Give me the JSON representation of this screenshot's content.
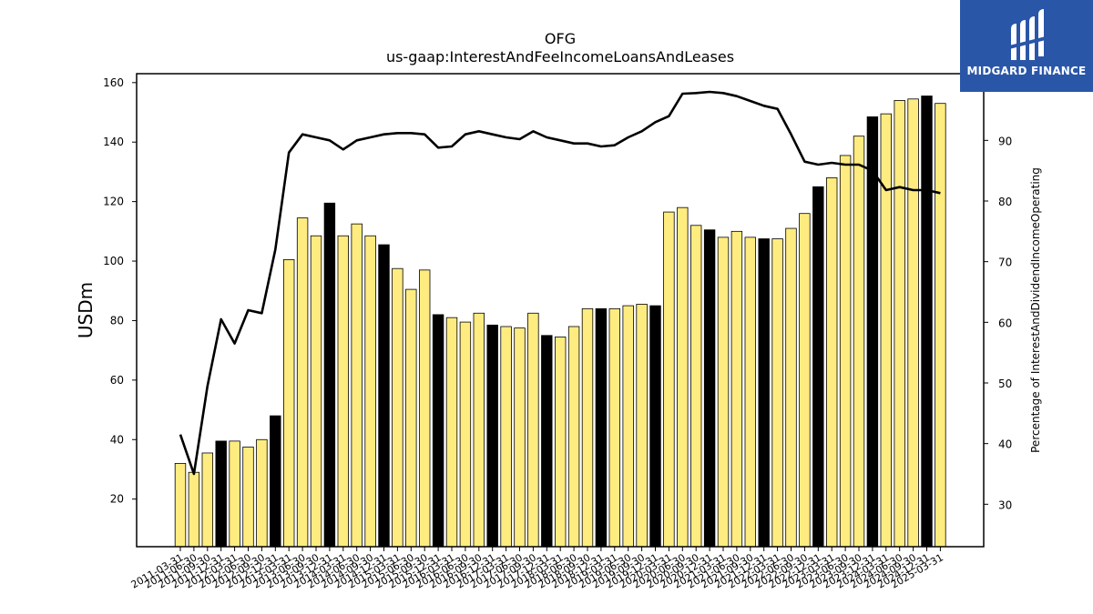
{
  "brand": {
    "name": "MIDGARD FINANCE",
    "color": "#2a56a8"
  },
  "chart_data": {
    "type": "bar",
    "title": "OFG",
    "subtitle": "us-gaap:InterestAndFeeIncomeLoansAndLeases",
    "ylabel": "USDm",
    "y2label": "Percentage of InterestAndDividendIncomeOperating",
    "ylim": [
      4,
      163
    ],
    "y2lim": [
      23,
      101
    ],
    "yticks": [
      20,
      40,
      60,
      80,
      100,
      120,
      140,
      160
    ],
    "y2ticks": [
      30,
      40,
      50,
      60,
      70,
      80,
      90
    ],
    "grid": false,
    "colors": {
      "bar": "#ffec80",
      "bar_highlight": "#000000",
      "line": "#000000"
    },
    "categories": [
      "2011-03-31",
      "2011-06-30",
      "2011-09-30",
      "2011-12-31",
      "2012-03-31",
      "2012-06-30",
      "2012-09-30",
      "2012-12-31",
      "2013-03-31",
      "2013-06-30",
      "2013-09-30",
      "2013-12-31",
      "2014-03-31",
      "2014-06-30",
      "2014-09-30",
      "2014-12-31",
      "2015-03-31",
      "2015-06-30",
      "2015-09-30",
      "2015-12-31",
      "2016-03-31",
      "2016-06-30",
      "2016-09-30",
      "2016-12-31",
      "2017-03-31",
      "2017-06-30",
      "2017-09-30",
      "2017-12-31",
      "2018-03-31",
      "2018-06-30",
      "2018-09-30",
      "2018-12-31",
      "2019-03-31",
      "2019-06-30",
      "2019-09-30",
      "2019-12-31",
      "2020-03-31",
      "2020-06-30",
      "2020-09-30",
      "2020-12-31",
      "2021-03-31",
      "2021-06-30",
      "2021-09-30",
      "2021-12-31",
      "2022-03-31",
      "2022-06-30",
      "2022-09-30",
      "2022-12-31",
      "2023-03-31",
      "2023-06-30",
      "2023-09-30",
      "2023-12-31",
      "2024-03-31",
      "2024-06-30",
      "2024-09-30",
      "2024-12-31",
      "2025-03-31"
    ],
    "tick_labels": [
      "2011-03-31",
      "2011-06-30",
      "2011-09-30",
      "2011-12-31",
      "2012-03-31",
      "2012-06-30",
      "2012-09-30",
      "2012-12-31",
      "2013-03-31",
      "2013-06-30",
      "2013-09-30",
      "2013-12-31",
      "2014-03-31",
      "2014-06-30",
      "2014-09-30",
      "2014-12-31",
      "2015-03-31",
      "2015-06-30",
      "2015-09-30",
      "2015-12-31",
      "2016-03-31",
      "2016-06-30",
      "2016-09-30",
      "2016-12-31",
      "2017-03-31",
      "2017-06-30",
      "2017-09-30",
      "2017-12-31",
      "2018-03-31",
      "2018-06-30",
      "2018-09-30",
      "2018-12-31",
      "2019-03-31",
      "2019-06-30",
      "2019-09-30",
      "2019-12-31",
      "2020-03-31",
      "2020-06-30",
      "2020-09-30",
      "2020-12-31",
      "2021-03-31",
      "2021-06-30",
      "2021-09-30",
      "2021-12-31",
      "2022-03-31",
      "2022-06-30",
      "2022-09-30",
      "2022-12-31",
      "2023-03-31",
      "2023-06-30",
      "2023-09-30",
      "2023-12-31",
      "2024-03-31",
      "2024-06-30",
      "2024-09-30",
      "2024-12-31",
      "2025-03-31"
    ],
    "series": [
      {
        "values": [
          32,
          29,
          35.5,
          39.5,
          39.5,
          37.5,
          40,
          48,
          100.5,
          114.5,
          108.5,
          119.5,
          108.5,
          112.5,
          108.5,
          105.5,
          97.5,
          90.5,
          97,
          82,
          81,
          79.5,
          82.5,
          78.5,
          78,
          77.5,
          82.5,
          75,
          74.5,
          78,
          84,
          84,
          84,
          85,
          85.5,
          85,
          116.5,
          118,
          112,
          110.5,
          108,
          110,
          108,
          107.5,
          107.5,
          111,
          116,
          125,
          128,
          135.5,
          142,
          148.5,
          149.5,
          154,
          154.5,
          155.5,
          153
        ],
        "highlight": [
          false,
          false,
          false,
          true,
          false,
          false,
          false,
          true,
          false,
          false,
          false,
          true,
          false,
          false,
          false,
          true,
          false,
          false,
          false,
          true,
          false,
          false,
          false,
          true,
          false,
          false,
          false,
          true,
          false,
          false,
          false,
          true,
          false,
          false,
          false,
          true,
          false,
          false,
          false,
          true,
          false,
          false,
          false,
          true,
          false,
          false,
          false,
          true,
          false,
          false,
          false,
          true,
          false,
          false,
          false,
          true,
          false
        ]
      },
      {
        "axis": "right",
        "values": [
          41.5,
          35,
          49.5,
          60.5,
          56.5,
          62,
          61.5,
          72,
          88,
          91,
          90.5,
          90,
          88.5,
          90,
          90.5,
          91,
          91.2,
          91.2,
          91,
          88.8,
          89,
          91,
          91.5,
          91,
          90.5,
          90.2,
          91.5,
          90.5,
          90,
          89.5,
          89.5,
          89,
          89.2,
          90.5,
          91.5,
          93,
          94,
          97.7,
          97.8,
          98,
          97.8,
          97.3,
          96.5,
          95.7,
          95.2,
          91,
          86.5,
          86,
          86.3,
          86,
          86,
          85,
          81.8,
          82.3,
          81.8,
          81.8,
          81.3
        ]
      }
    ]
  }
}
